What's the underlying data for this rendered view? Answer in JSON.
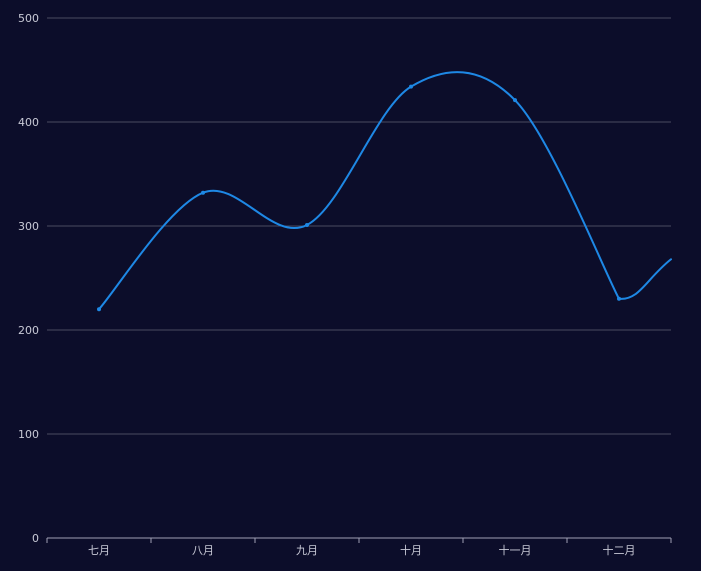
{
  "chart_data": {
    "type": "line",
    "smooth": true,
    "categories": [
      "七月",
      "八月",
      "九月",
      "十月",
      "十一月",
      "十二月"
    ],
    "series": [
      {
        "values": [
          220,
          332,
          301,
          434,
          421,
          230
        ]
      }
    ],
    "ylim": [
      0,
      500
    ],
    "yticks": [
      0,
      100,
      200,
      300,
      400,
      500
    ],
    "grid": true,
    "colors": {
      "background": "#0c0d2a",
      "line": "#1e88e5",
      "grid": "#4a4b60",
      "axis": "#9fa0b4",
      "text": "#c8c9d6"
    }
  }
}
